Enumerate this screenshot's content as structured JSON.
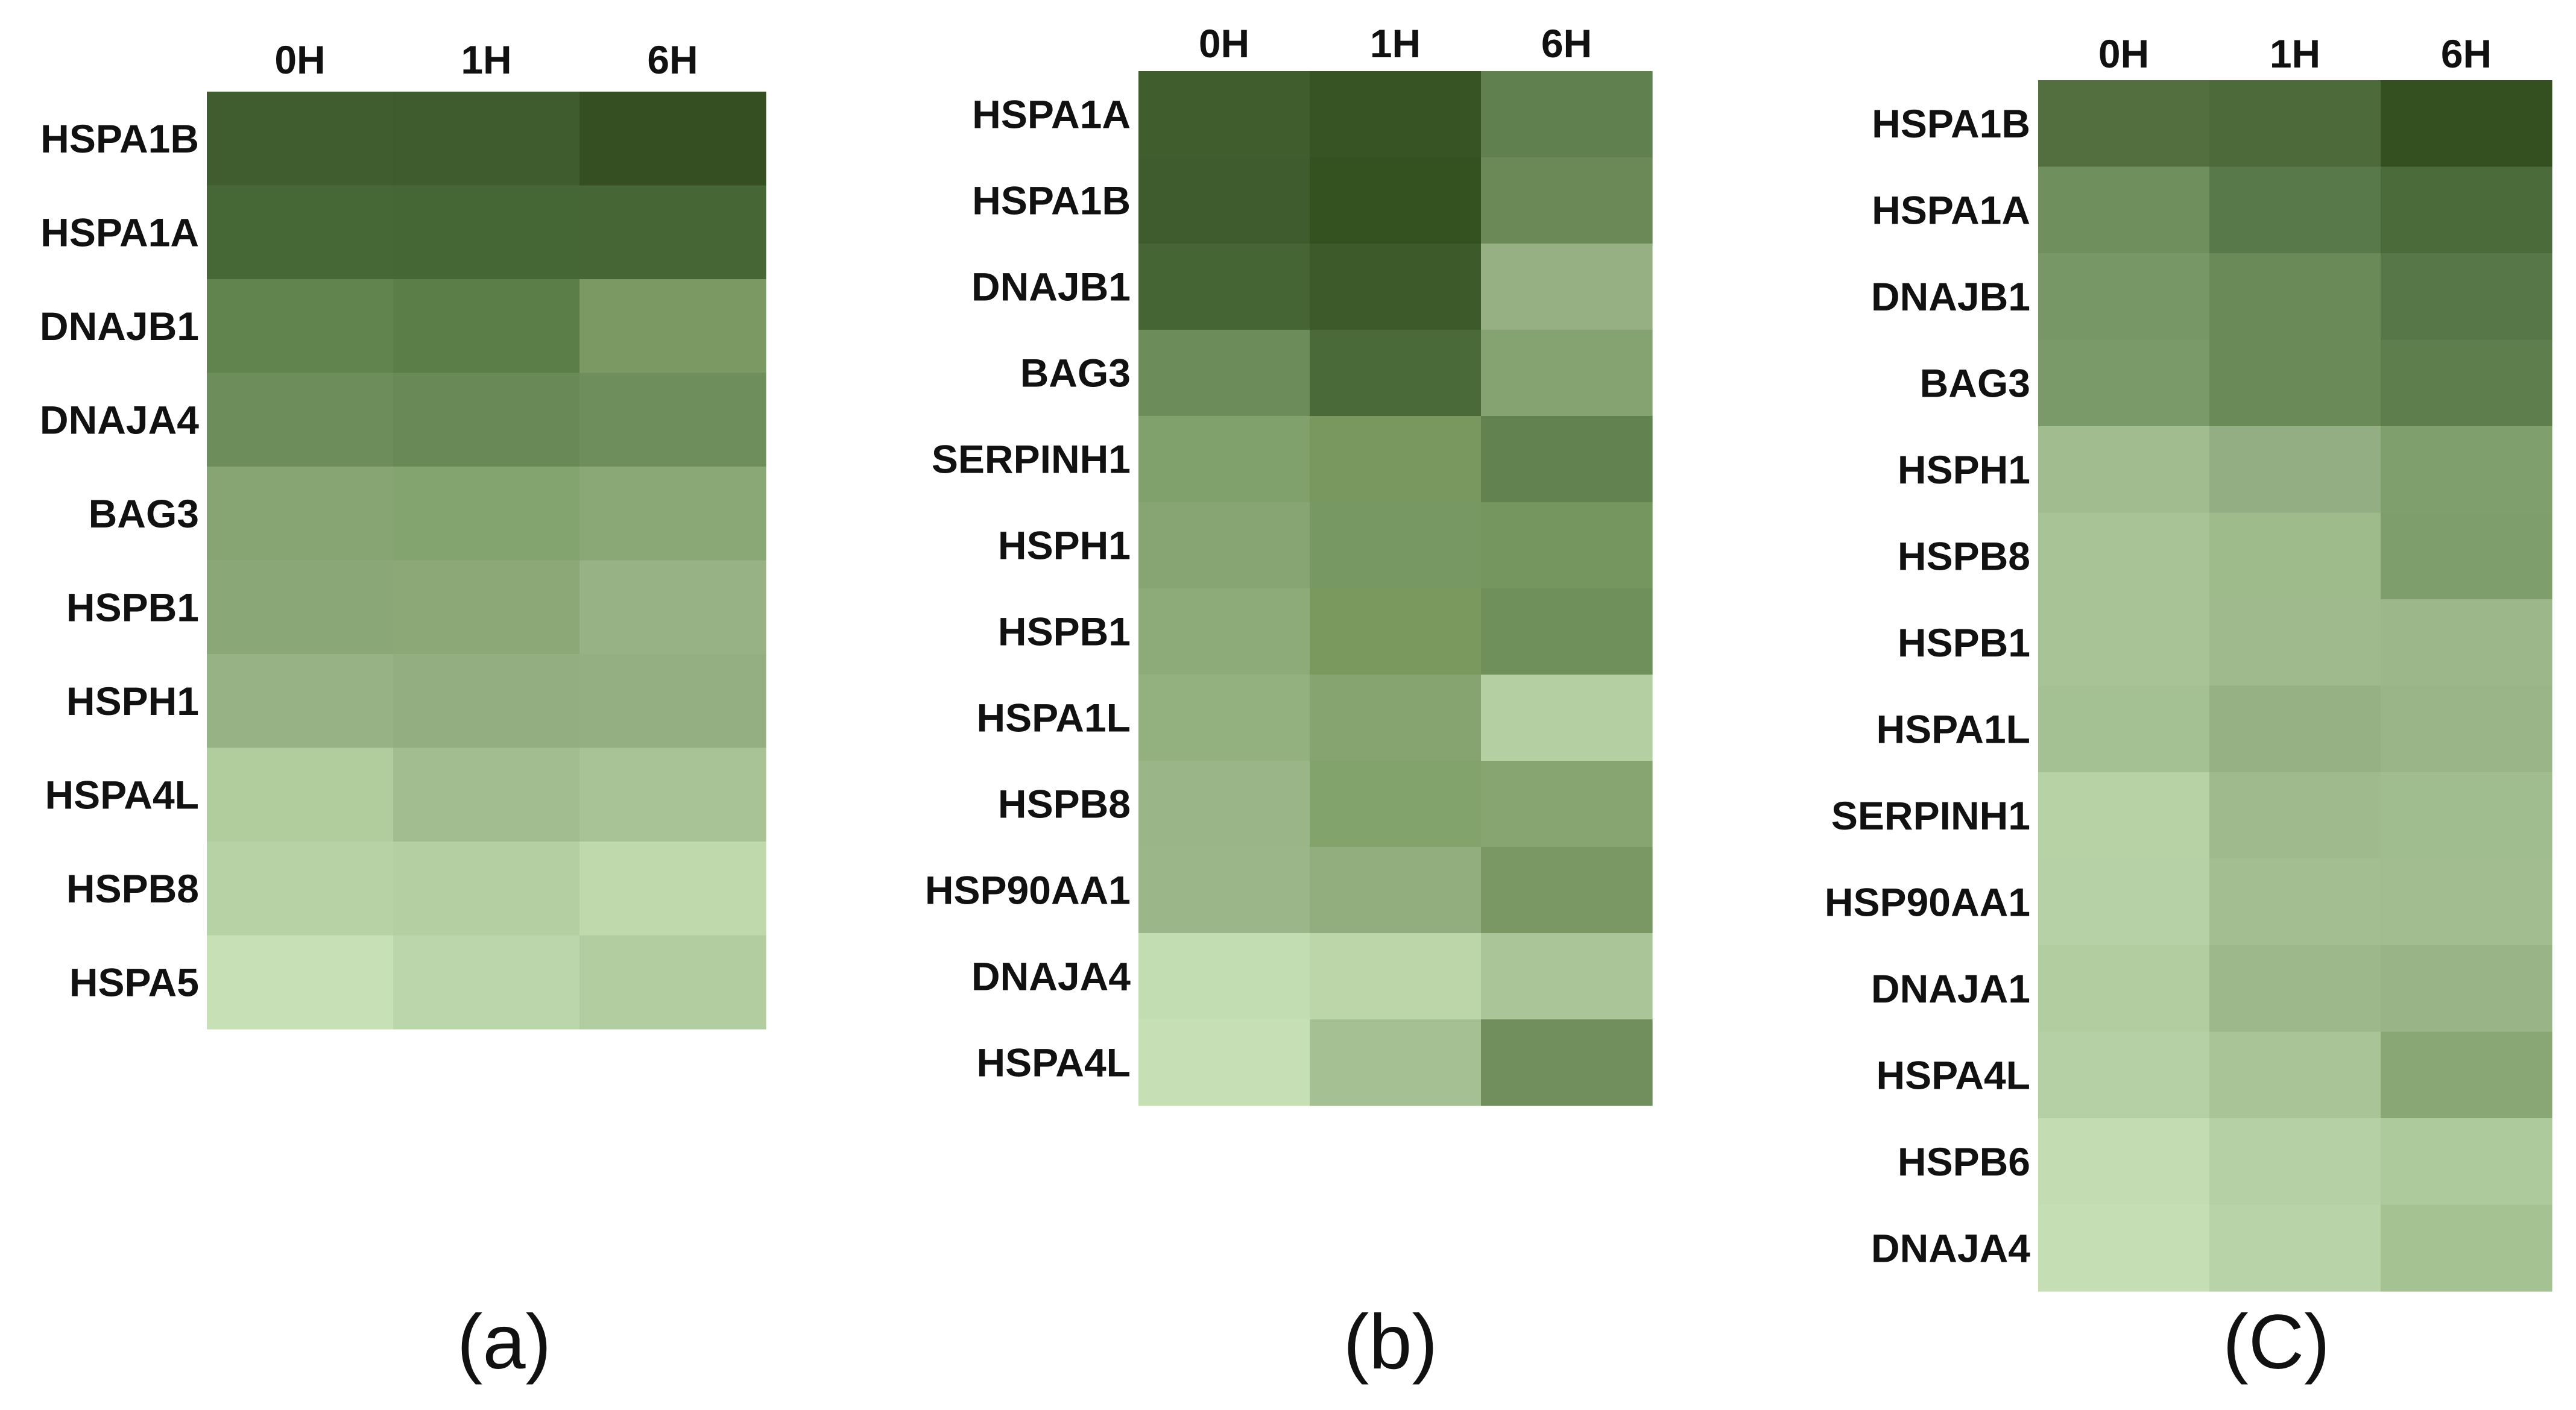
{
  "chart_data": [
    {
      "type": "heatmap",
      "panel_label": "(a)",
      "columns": [
        "0H",
        "1H",
        "6H"
      ],
      "rows": [
        {
          "gene": "HSPA1B",
          "colors": [
            "#3f5d2e",
            "#3e5c2d",
            "#354f22"
          ]
        },
        {
          "gene": "HSPA1A",
          "colors": [
            "#466837",
            "#456736",
            "#466636"
          ]
        },
        {
          "gene": "DNAJB1",
          "colors": [
            "#61844e",
            "#5b7e48",
            "#7a9963"
          ]
        },
        {
          "gene": "DNAJA4",
          "colors": [
            "#6d8e5a",
            "#698a56",
            "#6e8f5b"
          ]
        },
        {
          "gene": "BAG3",
          "colors": [
            "#87a573",
            "#83a46f",
            "#8aa776"
          ]
        },
        {
          "gene": "HSPB1",
          "colors": [
            "#8aa778",
            "#8ba876",
            "#97b285"
          ]
        },
        {
          "gene": "HSPH1",
          "colors": [
            "#97b285",
            "#93af81",
            "#94af82"
          ]
        },
        {
          "gene": "HSPA4L",
          "colors": [
            "#b1cc9d",
            "#a2be90",
            "#a8c497"
          ]
        },
        {
          "gene": "HSPB8",
          "colors": [
            "#b7d2a5",
            "#b4cfa2",
            "#bfd9ad"
          ]
        },
        {
          "gene": "HSPA5",
          "colors": [
            "#c7e0b6",
            "#bcd6ab",
            "#b2cd9f"
          ]
        }
      ]
    },
    {
      "type": "heatmap",
      "panel_label": "(b)",
      "columns": [
        "0H",
        "1H",
        "6H"
      ],
      "rows": [
        {
          "gene": "HSPA1A",
          "colors": [
            "#3f5d2d",
            "#375424",
            "#61804f"
          ]
        },
        {
          "gene": "HSPA1B",
          "colors": [
            "#3e5c2d",
            "#345120",
            "#6a8957"
          ]
        },
        {
          "gene": "DNAJB1",
          "colors": [
            "#456535",
            "#3c5a2a",
            "#96b084"
          ]
        },
        {
          "gene": "BAG3",
          "colors": [
            "#6c8d59",
            "#4a6b39",
            "#84a370"
          ]
        },
        {
          "gene": "SERPINH1",
          "colors": [
            "#80a06c",
            "#78985f",
            "#628350"
          ]
        },
        {
          "gene": "HSPH1",
          "colors": [
            "#86a572",
            "#779862",
            "#75965f"
          ]
        },
        {
          "gene": "HSPB1",
          "colors": [
            "#8dab79",
            "#79995f",
            "#6f905a"
          ]
        },
        {
          "gene": "HSPA1L",
          "colors": [
            "#93b07f",
            "#86a470",
            "#b4cfa1"
          ]
        },
        {
          "gene": "HSPB8",
          "colors": [
            "#9ab587",
            "#83a36d",
            "#86a571"
          ]
        },
        {
          "gene": "HSP90AA1",
          "colors": [
            "#9bb689",
            "#92ae7f",
            "#7a9864"
          ]
        },
        {
          "gene": "DNAJA4",
          "colors": [
            "#c3ddb2",
            "#bcd6aa",
            "#aac699"
          ]
        },
        {
          "gene": "HSPA4L",
          "colors": [
            "#c6dfb5",
            "#a5c093",
            "#708f5c"
          ]
        }
      ]
    },
    {
      "type": "heatmap",
      "panel_label": "(C)",
      "columns": [
        "0H",
        "1H",
        "6H"
      ],
      "rows": [
        {
          "gene": "HSPA1B",
          "colors": [
            "#536f3f",
            "#4c6a3a",
            "#344f20"
          ]
        },
        {
          "gene": "HSPA1A",
          "colors": [
            "#6f8f5d",
            "#58794a",
            "#4c6b3b"
          ]
        },
        {
          "gene": "DNAJB1",
          "colors": [
            "#779767",
            "#6a8b58",
            "#577749"
          ]
        },
        {
          "gene": "BAG3",
          "colors": [
            "#7b9a69",
            "#6a8a58",
            "#5e7e4d"
          ]
        },
        {
          "gene": "HSPH1",
          "colors": [
            "#a1bc8e",
            "#93ae82",
            "#7fa06c"
          ]
        },
        {
          "gene": "HSPB8",
          "colors": [
            "#a8c496",
            "#9ebb8c",
            "#7e9f6b"
          ]
        },
        {
          "gene": "HSPB1",
          "colors": [
            "#a8c497",
            "#9fbb8d",
            "#9cb88a"
          ]
        },
        {
          "gene": "HSPA1L",
          "colors": [
            "#a4c193",
            "#96b284",
            "#9ab688"
          ]
        },
        {
          "gene": "SERPINH1",
          "colors": [
            "#b7d3a6",
            "#9fbb8e",
            "#a0bd8f"
          ]
        },
        {
          "gene": "HSP90AA1",
          "colors": [
            "#b6d1a5",
            "#a3bf91",
            "#a2be90"
          ]
        },
        {
          "gene": "DNAJA1",
          "colors": [
            "#b2cea1",
            "#9db98b",
            "#99b587"
          ]
        },
        {
          "gene": "HSPA4L",
          "colors": [
            "#b5d0a4",
            "#a9c597",
            "#89a675"
          ]
        },
        {
          "gene": "HSPB6",
          "colors": [
            "#c3dcb2",
            "#b5d0a4",
            "#adca9d"
          ]
        },
        {
          "gene": "DNAJA4",
          "colors": [
            "#c5deb4",
            "#b8d3a7",
            "#a5c293"
          ]
        }
      ]
    }
  ]
}
